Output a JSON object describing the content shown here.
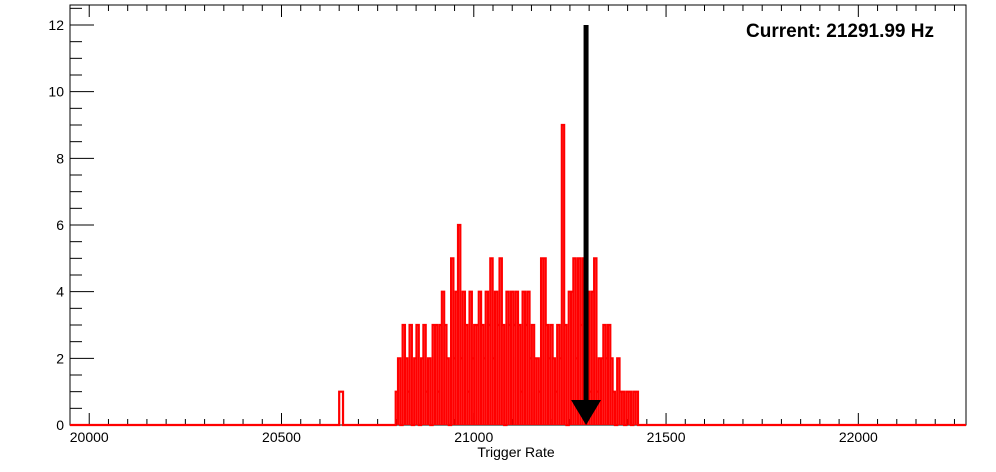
{
  "chart_data": {
    "type": "histogram",
    "title": "",
    "xlabel": "Trigger Rate",
    "ylabel": "",
    "xlim": [
      19950,
      22280
    ],
    "ylim": [
      0,
      12.6
    ],
    "x_ticks": [
      20000,
      20500,
      21000,
      21500,
      22000
    ],
    "y_ticks": [
      0,
      2,
      4,
      6,
      8,
      10,
      12
    ],
    "grid": false,
    "legend": "none",
    "series": [
      {
        "color": "#ff0000",
        "bins": [
          [
            20650,
            20660,
            1
          ],
          [
            20797,
            20803,
            1
          ],
          [
            20803,
            20809,
            2
          ],
          [
            20809,
            20815,
            0
          ],
          [
            20815,
            20821,
            3
          ],
          [
            20821,
            20827,
            2
          ],
          [
            20827,
            20833,
            1
          ],
          [
            20833,
            20839,
            3
          ],
          [
            20839,
            20845,
            0
          ],
          [
            20845,
            20851,
            2
          ],
          [
            20851,
            20857,
            3
          ],
          [
            20857,
            20863,
            0
          ],
          [
            20863,
            20869,
            2
          ],
          [
            20869,
            20875,
            3
          ],
          [
            20875,
            20881,
            1
          ],
          [
            20881,
            20887,
            2
          ],
          [
            20887,
            20893,
            0
          ],
          [
            20893,
            20899,
            3
          ],
          [
            20899,
            20905,
            3
          ],
          [
            20905,
            20911,
            1
          ],
          [
            20911,
            20917,
            3
          ],
          [
            20917,
            20923,
            4
          ],
          [
            20923,
            20929,
            3
          ],
          [
            20929,
            20935,
            2
          ],
          [
            20935,
            20941,
            0
          ],
          [
            20941,
            20947,
            5
          ],
          [
            20947,
            20953,
            2
          ],
          [
            20953,
            20959,
            4
          ],
          [
            20959,
            20965,
            6
          ],
          [
            20965,
            20971,
            2
          ],
          [
            20971,
            20977,
            4
          ],
          [
            20977,
            20983,
            3
          ],
          [
            20983,
            20989,
            1
          ],
          [
            20989,
            20995,
            4
          ],
          [
            20995,
            21001,
            2
          ],
          [
            21001,
            21007,
            3
          ],
          [
            21007,
            21013,
            3
          ],
          [
            21013,
            21019,
            4
          ],
          [
            21019,
            21025,
            3
          ],
          [
            21025,
            21031,
            2
          ],
          [
            21031,
            21037,
            4
          ],
          [
            21037,
            21043,
            3
          ],
          [
            21043,
            21049,
            5
          ],
          [
            21049,
            21055,
            2
          ],
          [
            21055,
            21061,
            4
          ],
          [
            21061,
            21067,
            3
          ],
          [
            21067,
            21073,
            5
          ],
          [
            21073,
            21079,
            3
          ],
          [
            21079,
            21085,
            0
          ],
          [
            21085,
            21091,
            4
          ],
          [
            21091,
            21097,
            3
          ],
          [
            21097,
            21103,
            4
          ],
          [
            21103,
            21109,
            3
          ],
          [
            21109,
            21115,
            4
          ],
          [
            21115,
            21121,
            3
          ],
          [
            21121,
            21127,
            1
          ],
          [
            21127,
            21133,
            4
          ],
          [
            21133,
            21139,
            3
          ],
          [
            21139,
            21145,
            4
          ],
          [
            21145,
            21151,
            2
          ],
          [
            21151,
            21157,
            3
          ],
          [
            21157,
            21163,
            2
          ],
          [
            21163,
            21169,
            2
          ],
          [
            21169,
            21175,
            1
          ],
          [
            21175,
            21181,
            5
          ],
          [
            21181,
            21187,
            5
          ],
          [
            21187,
            21193,
            3
          ],
          [
            21193,
            21199,
            2
          ],
          [
            21199,
            21205,
            3
          ],
          [
            21205,
            21211,
            2
          ],
          [
            21211,
            21217,
            1
          ],
          [
            21217,
            21223,
            3
          ],
          [
            21223,
            21229,
            2
          ],
          [
            21229,
            21235,
            9
          ],
          [
            21235,
            21241,
            3
          ],
          [
            21241,
            21247,
            0
          ],
          [
            21247,
            21253,
            4
          ],
          [
            21253,
            21259,
            4
          ],
          [
            21259,
            21265,
            5
          ],
          [
            21265,
            21271,
            2
          ],
          [
            21271,
            21277,
            5
          ],
          [
            21277,
            21283,
            3
          ],
          [
            21283,
            21289,
            5
          ],
          [
            21289,
            21295,
            2
          ],
          [
            21295,
            21301,
            4
          ],
          [
            21301,
            21307,
            1
          ],
          [
            21307,
            21313,
            4
          ],
          [
            21313,
            21319,
            5
          ],
          [
            21319,
            21325,
            1
          ],
          [
            21325,
            21331,
            2
          ],
          [
            21331,
            21337,
            2
          ],
          [
            21337,
            21343,
            3
          ],
          [
            21343,
            21349,
            2
          ],
          [
            21349,
            21355,
            3
          ],
          [
            21355,
            21361,
            2
          ],
          [
            21361,
            21367,
            1
          ],
          [
            21367,
            21373,
            0
          ],
          [
            21373,
            21379,
            2
          ],
          [
            21379,
            21385,
            1
          ],
          [
            21385,
            21391,
            1
          ],
          [
            21391,
            21397,
            0
          ],
          [
            21397,
            21403,
            1
          ],
          [
            21403,
            21409,
            1
          ],
          [
            21409,
            21415,
            0
          ],
          [
            21415,
            21421,
            1
          ],
          [
            21421,
            21427,
            1
          ],
          [
            21427,
            21433,
            0
          ]
        ]
      }
    ],
    "marker": {
      "x": 21291.99,
      "y_top": 12,
      "y_bottom": 0,
      "style": "arrow-down",
      "color": "#000000"
    },
    "annotation": {
      "text": "Current: 21291.99 Hz",
      "position": "top-right"
    }
  }
}
